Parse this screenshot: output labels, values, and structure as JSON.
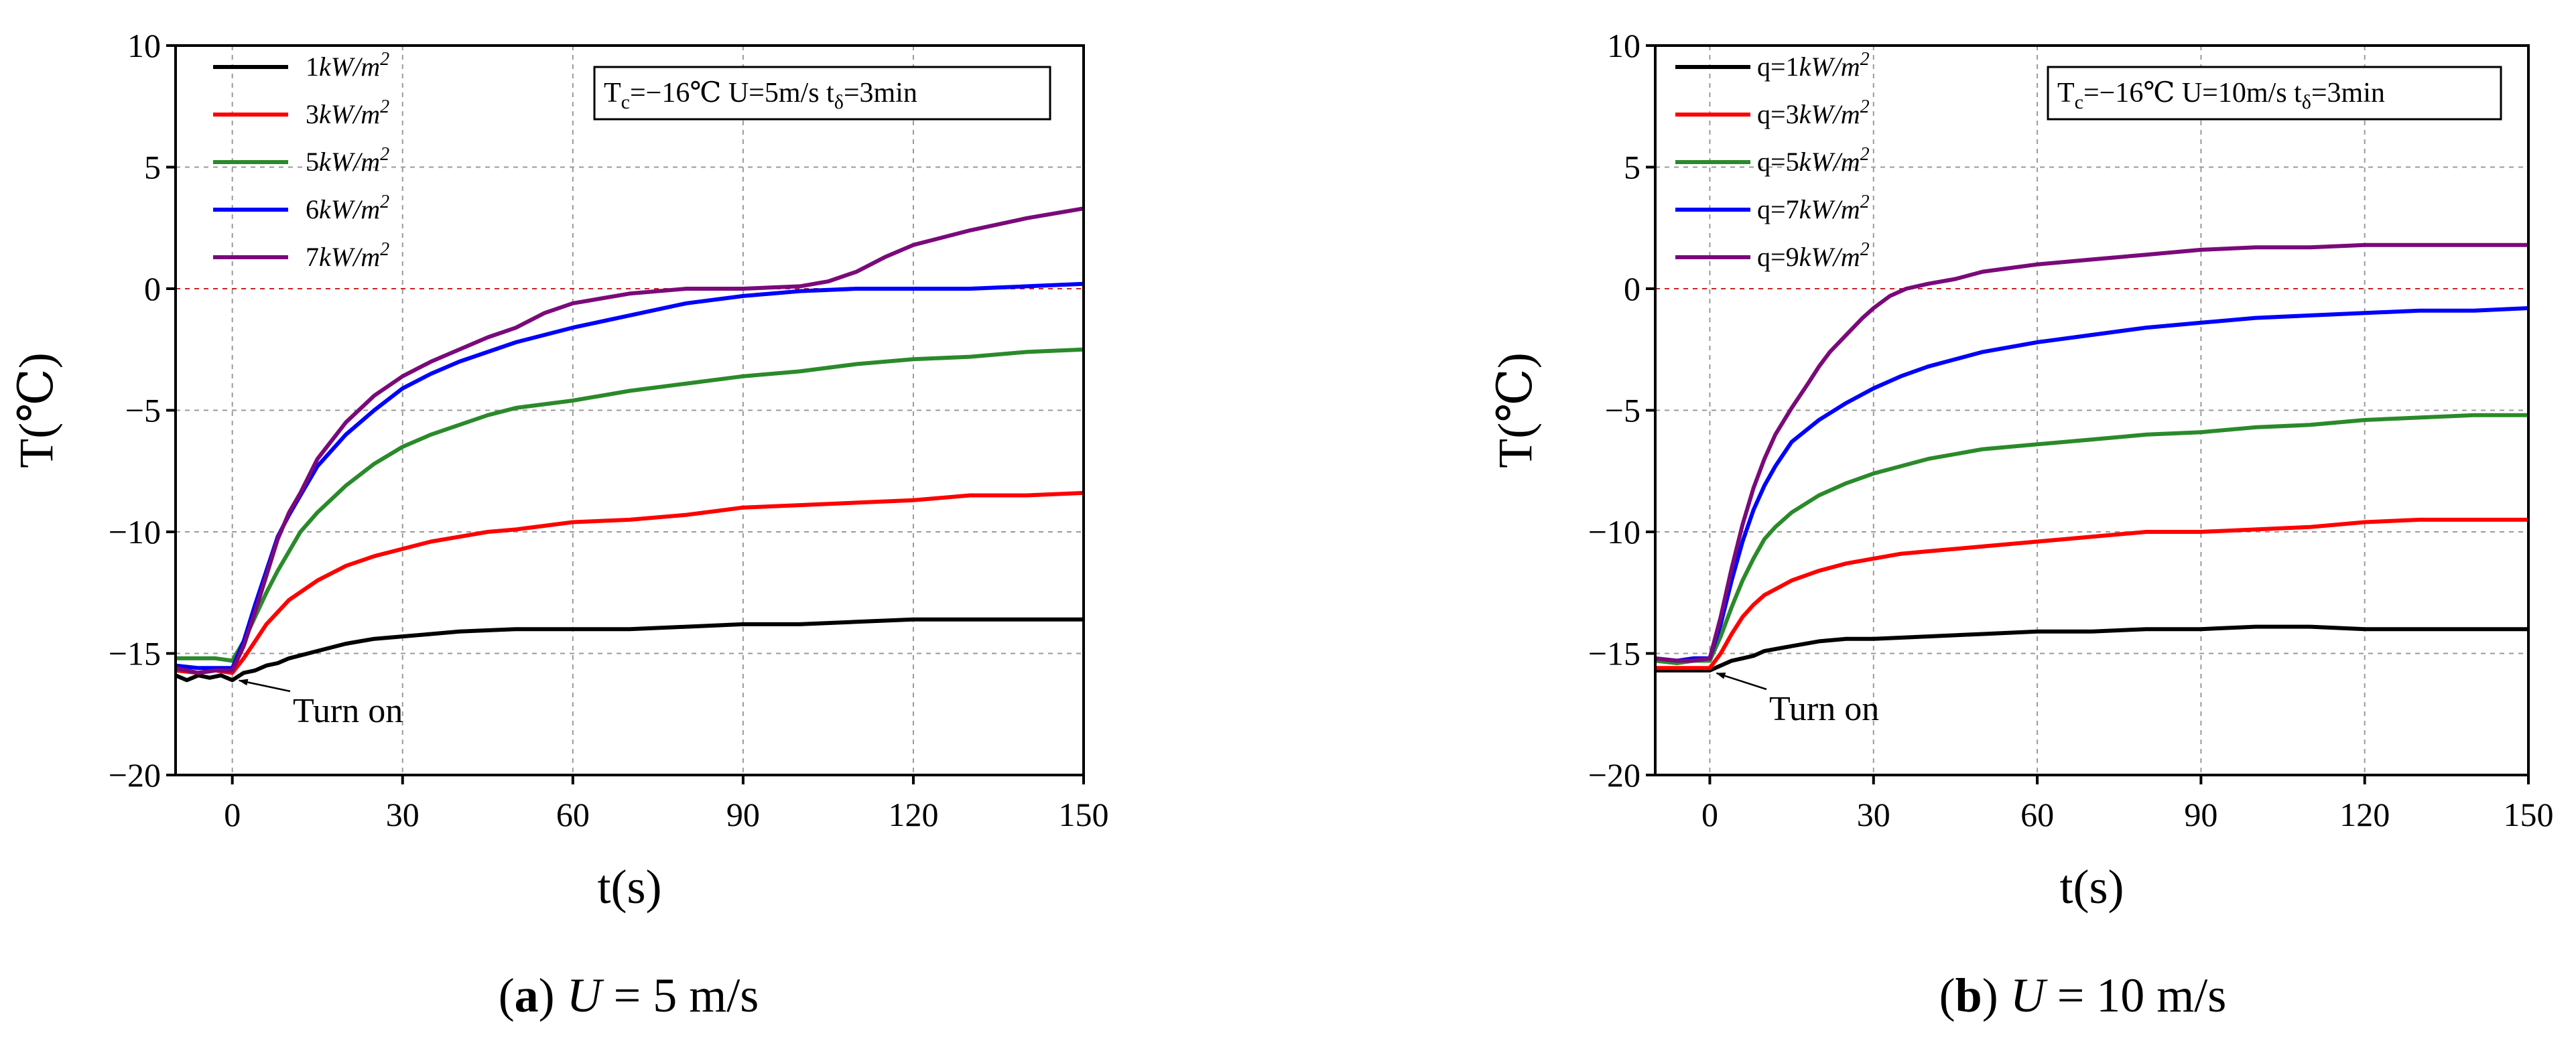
{
  "chart_data": [
    {
      "id": "a",
      "type": "line",
      "caption": {
        "label": "a",
        "open": "(",
        "close": ")",
        "var": "U",
        "eq": "=",
        "value": "5",
        "unit": "m/s"
      },
      "conditions": {
        "tc_sym": "T",
        "tc_sub": "c",
        "tc_val": "=−16℃",
        "u_text": "U=5m/s",
        "t_sym": "t",
        "t_sub": "δ",
        "t_val": "=3min"
      },
      "annotation": {
        "text": "Turn on",
        "x": 0,
        "y": -16
      },
      "xlabel": "t(s)",
      "ylabel": "T(℃)",
      "xlim": [
        -10,
        150
      ],
      "ylim": [
        -20,
        10
      ],
      "xticks": [
        0,
        30,
        60,
        90,
        120,
        150
      ],
      "yticks": [
        -20,
        -15,
        -10,
        -5,
        0,
        5,
        10
      ],
      "tick_labels": {
        "x": [
          "0",
          "30",
          "60",
          "90",
          "120",
          "150"
        ],
        "y": [
          "−20",
          "−15",
          "−10",
          "−5",
          "0",
          "5",
          "10"
        ]
      },
      "zero_line": true,
      "grid": true,
      "legend_position": "top-left",
      "series": [
        {
          "name": "1kW/m²",
          "label_prefix": "",
          "label_num": "1",
          "label_unit": "kW/m",
          "label_exp": "2",
          "color": "#000000",
          "x": [
            -10,
            -8,
            -6,
            -4,
            -2,
            0,
            2,
            4,
            6,
            8,
            10,
            15,
            20,
            25,
            30,
            35,
            40,
            50,
            60,
            70,
            80,
            90,
            100,
            110,
            120,
            130,
            140,
            150
          ],
          "y": [
            -15.9,
            -16.1,
            -15.9,
            -16.0,
            -15.9,
            -16.1,
            -15.8,
            -15.7,
            -15.5,
            -15.4,
            -15.2,
            -14.9,
            -14.6,
            -14.4,
            -14.3,
            -14.2,
            -14.1,
            -14.0,
            -14.0,
            -14.0,
            -13.9,
            -13.8,
            -13.8,
            -13.7,
            -13.6,
            -13.6,
            -13.6,
            -13.6
          ]
        },
        {
          "name": "3kW/m²",
          "label_prefix": "",
          "label_num": "3",
          "label_unit": "kW/m",
          "label_exp": "2",
          "color": "#ff0000",
          "x": [
            -10,
            -6,
            -3,
            0,
            2,
            4,
            6,
            8,
            10,
            15,
            20,
            25,
            30,
            35,
            40,
            45,
            50,
            60,
            70,
            80,
            90,
            100,
            110,
            120,
            130,
            140,
            150
          ],
          "y": [
            -15.7,
            -15.8,
            -15.7,
            -15.8,
            -15.2,
            -14.5,
            -13.8,
            -13.3,
            -12.8,
            -12.0,
            -11.4,
            -11.0,
            -10.7,
            -10.4,
            -10.2,
            -10.0,
            -9.9,
            -9.6,
            -9.5,
            -9.3,
            -9.0,
            -8.9,
            -8.8,
            -8.7,
            -8.5,
            -8.5,
            -8.4
          ]
        },
        {
          "name": "5kW/m²",
          "label_prefix": "",
          "label_num": "5",
          "label_unit": "kW/m",
          "label_exp": "2",
          "color": "#2a8a2a",
          "x": [
            -10,
            -6,
            -3,
            0,
            2,
            4,
            6,
            8,
            10,
            12,
            15,
            20,
            25,
            30,
            35,
            40,
            45,
            50,
            60,
            70,
            80,
            90,
            100,
            110,
            120,
            130,
            140,
            150
          ],
          "y": [
            -15.2,
            -15.2,
            -15.2,
            -15.3,
            -14.5,
            -13.5,
            -12.5,
            -11.6,
            -10.8,
            -10.0,
            -9.2,
            -8.1,
            -7.2,
            -6.5,
            -6.0,
            -5.6,
            -5.2,
            -4.9,
            -4.6,
            -4.2,
            -3.9,
            -3.6,
            -3.4,
            -3.1,
            -2.9,
            -2.8,
            -2.6,
            -2.5
          ]
        },
        {
          "name": "6kW/m²",
          "label_prefix": "",
          "label_num": "6",
          "label_unit": "kW/m",
          "label_exp": "2",
          "color": "#0000ff",
          "x": [
            -10,
            -6,
            -3,
            0,
            2,
            4,
            6,
            8,
            10,
            12,
            15,
            20,
            25,
            30,
            35,
            40,
            45,
            50,
            55,
            60,
            70,
            80,
            90,
            100,
            110,
            120,
            130,
            140,
            150
          ],
          "y": [
            -15.5,
            -15.6,
            -15.6,
            -15.6,
            -14.5,
            -13.0,
            -11.6,
            -10.2,
            -9.3,
            -8.5,
            -7.3,
            -6.0,
            -5.0,
            -4.1,
            -3.5,
            -3.0,
            -2.6,
            -2.2,
            -1.9,
            -1.6,
            -1.1,
            -0.6,
            -0.3,
            -0.1,
            0.0,
            0.0,
            0.0,
            0.1,
            0.2
          ]
        },
        {
          "name": "7kW/m²",
          "label_prefix": "",
          "label_num": "7",
          "label_unit": "kW/m",
          "label_exp": "2",
          "color": "#7a0a7a",
          "x": [
            -10,
            -6,
            -3,
            0,
            2,
            4,
            6,
            8,
            10,
            12,
            15,
            20,
            25,
            30,
            35,
            40,
            45,
            50,
            55,
            60,
            70,
            80,
            90,
            100,
            105,
            110,
            115,
            120,
            130,
            140,
            150
          ],
          "y": [
            -15.6,
            -15.8,
            -15.7,
            -15.7,
            -14.7,
            -13.3,
            -11.8,
            -10.3,
            -9.2,
            -8.4,
            -7.0,
            -5.5,
            -4.4,
            -3.6,
            -3.0,
            -2.5,
            -2.0,
            -1.6,
            -1.0,
            -0.6,
            -0.2,
            0.0,
            0.0,
            0.1,
            0.3,
            0.7,
            1.3,
            1.8,
            2.4,
            2.9,
            3.3
          ]
        }
      ]
    },
    {
      "id": "b",
      "type": "line",
      "caption": {
        "label": "b",
        "open": "(",
        "close": ")",
        "var": "U",
        "eq": "=",
        "value": "10",
        "unit": "m/s"
      },
      "conditions": {
        "tc_sym": "T",
        "tc_sub": "c",
        "tc_val": "=−16℃",
        "u_text": "U=10m/s",
        "t_sym": "t",
        "t_sub": "δ",
        "t_val": "=3min"
      },
      "annotation": {
        "text": "Turn on",
        "x": 0,
        "y": -15.7
      },
      "xlabel": "t(s)",
      "ylabel": "T(℃)",
      "xlim": [
        -10,
        150
      ],
      "ylim": [
        -20,
        10
      ],
      "xticks": [
        0,
        30,
        60,
        90,
        120,
        150
      ],
      "yticks": [
        -20,
        -15,
        -10,
        -5,
        0,
        5,
        10
      ],
      "tick_labels": {
        "x": [
          "0",
          "30",
          "60",
          "90",
          "120",
          "150"
        ],
        "y": [
          "−20",
          "−15",
          "−10",
          "−5",
          "0",
          "5",
          "10"
        ]
      },
      "zero_line": true,
      "grid": true,
      "legend_position": "top-left",
      "series": [
        {
          "name": "q=1kW/m²",
          "label_prefix": "q=",
          "label_num": "1",
          "label_unit": "kW/m",
          "label_exp": "2",
          "color": "#000000",
          "x": [
            -10,
            -6,
            -3,
            0,
            2,
            4,
            6,
            8,
            10,
            15,
            20,
            25,
            30,
            40,
            50,
            60,
            70,
            80,
            90,
            100,
            110,
            120,
            130,
            140,
            150
          ],
          "y": [
            -15.7,
            -15.7,
            -15.7,
            -15.7,
            -15.5,
            -15.3,
            -15.2,
            -15.1,
            -14.9,
            -14.7,
            -14.5,
            -14.4,
            -14.4,
            -14.3,
            -14.2,
            -14.1,
            -14.1,
            -14.0,
            -14.0,
            -13.9,
            -13.9,
            -14.0,
            -14.0,
            -14.0,
            -14.0
          ]
        },
        {
          "name": "q=3kW/m²",
          "label_prefix": "q=",
          "label_num": "3",
          "label_unit": "kW/m",
          "label_exp": "2",
          "color": "#ff0000",
          "x": [
            -10,
            -6,
            -3,
            0,
            2,
            4,
            6,
            8,
            10,
            15,
            20,
            25,
            30,
            35,
            40,
            50,
            60,
            70,
            80,
            90,
            100,
            110,
            120,
            130,
            140,
            150
          ],
          "y": [
            -15.6,
            -15.6,
            -15.6,
            -15.6,
            -15.0,
            -14.2,
            -13.5,
            -13.0,
            -12.6,
            -12.0,
            -11.6,
            -11.3,
            -11.1,
            -10.9,
            -10.8,
            -10.6,
            -10.4,
            -10.2,
            -10.0,
            -10.0,
            -9.9,
            -9.8,
            -9.6,
            -9.5,
            -9.5,
            -9.5
          ]
        },
        {
          "name": "q=5kW/m²",
          "label_prefix": "q=",
          "label_num": "5",
          "label_unit": "kW/m",
          "label_exp": "2",
          "color": "#2a8a2a",
          "x": [
            -10,
            -6,
            -3,
            0,
            2,
            4,
            6,
            8,
            10,
            12,
            15,
            20,
            25,
            30,
            35,
            40,
            50,
            60,
            70,
            80,
            90,
            100,
            110,
            120,
            130,
            140,
            150
          ],
          "y": [
            -15.3,
            -15.4,
            -15.3,
            -15.3,
            -14.3,
            -13.1,
            -12.0,
            -11.1,
            -10.3,
            -9.8,
            -9.2,
            -8.5,
            -8.0,
            -7.6,
            -7.3,
            -7.0,
            -6.6,
            -6.4,
            -6.2,
            -6.0,
            -5.9,
            -5.7,
            -5.6,
            -5.4,
            -5.3,
            -5.2,
            -5.2
          ]
        },
        {
          "name": "q=7kW/m²",
          "label_prefix": "q=",
          "label_num": "7",
          "label_unit": "kW/m",
          "label_exp": "2",
          "color": "#0000ff",
          "x": [
            -10,
            -6,
            -3,
            0,
            2,
            4,
            6,
            8,
            10,
            12,
            15,
            20,
            25,
            30,
            35,
            40,
            50,
            60,
            70,
            80,
            90,
            100,
            110,
            120,
            130,
            140,
            150
          ],
          "y": [
            -15.2,
            -15.3,
            -15.2,
            -15.2,
            -13.8,
            -12.0,
            -10.4,
            -9.1,
            -8.1,
            -7.3,
            -6.3,
            -5.4,
            -4.7,
            -4.1,
            -3.6,
            -3.2,
            -2.6,
            -2.2,
            -1.9,
            -1.6,
            -1.4,
            -1.2,
            -1.1,
            -1.0,
            -0.9,
            -0.9,
            -0.8
          ]
        },
        {
          "name": "q=9kW/m²",
          "label_prefix": "q=",
          "label_num": "9",
          "label_unit": "kW/m",
          "label_exp": "2",
          "color": "#7a0a7a",
          "x": [
            -10,
            -6,
            -3,
            0,
            2,
            4,
            6,
            8,
            10,
            12,
            15,
            18,
            20,
            22,
            25,
            28,
            30,
            33,
            36,
            40,
            45,
            50,
            60,
            70,
            80,
            90,
            100,
            110,
            120,
            130,
            140,
            150
          ],
          "y": [
            -15.2,
            -15.3,
            -15.3,
            -15.2,
            -13.5,
            -11.5,
            -9.7,
            -8.2,
            -7.0,
            -6.0,
            -4.9,
            -3.9,
            -3.2,
            -2.6,
            -1.9,
            -1.2,
            -0.8,
            -0.3,
            0.0,
            0.2,
            0.4,
            0.7,
            1.0,
            1.2,
            1.4,
            1.6,
            1.7,
            1.7,
            1.8,
            1.8,
            1.8,
            1.8
          ]
        }
      ]
    }
  ]
}
